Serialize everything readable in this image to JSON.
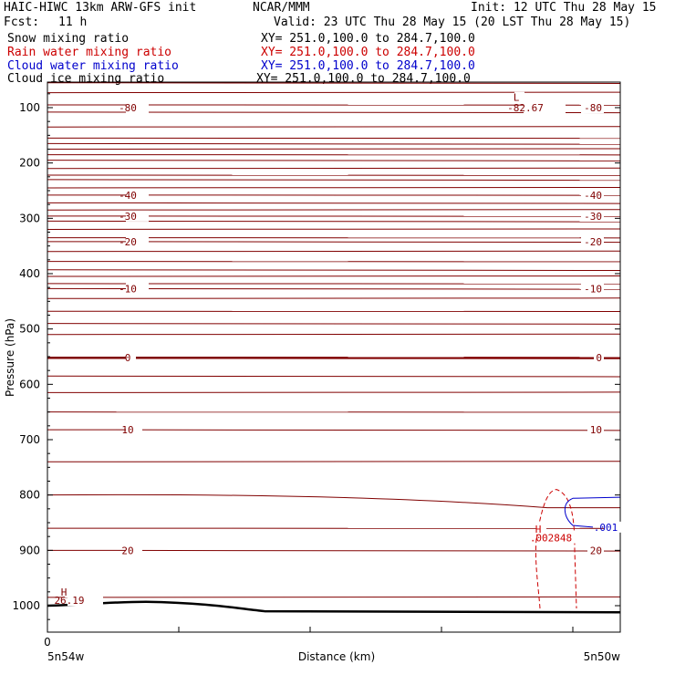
{
  "header": {
    "model": "HAIC-HIWC 13km ARW-GFS init",
    "org": "NCAR/MMM",
    "init": "Init: 12 UTC Thu 28 May 15",
    "fcst_label": "Fcst:",
    "fcst_value": "11 h",
    "valid": "Valid: 23 UTC Thu 28 May 15 (20 LST Thu 28 May 15)"
  },
  "fields": [
    {
      "name": "Snow mixing ratio",
      "xy": "XY= 251.0,100.0 to 284.7,100.0",
      "color": "#000000"
    },
    {
      "name": "Rain water mixing ratio",
      "xy": "XY= 251.0,100.0 to 284.7,100.0",
      "color": "#cc0000"
    },
    {
      "name": "Cloud water mixing ratio",
      "xy": "XY= 251.0,100.0 to 284.7,100.0",
      "color": "#0000cc"
    },
    {
      "name": "Cloud ice mixing ratio",
      "xy": "XY= 251.0,100.0 to 284.7,100.0",
      "color": "#000000"
    }
  ],
  "chart_data": {
    "type": "cross-section contour",
    "ylabel": "Pressure (hPa)",
    "xlabel": "Distance (km)",
    "x_origin_label": "0",
    "x_start_label": "5n54w",
    "x_end_label": "5n50w",
    "ylim": [
      1050,
      50
    ],
    "yticks": [
      100,
      200,
      300,
      400,
      500,
      600,
      700,
      800,
      900,
      1000
    ],
    "isotherm_color": "#800000",
    "isotherm_labels": [
      {
        "value": "-80",
        "p": 100,
        "side": "both"
      },
      {
        "value": "-40",
        "p": 258,
        "side": "both"
      },
      {
        "value": "-30",
        "p": 296,
        "side": "both"
      },
      {
        "value": "-20",
        "p": 342,
        "side": "both"
      },
      {
        "value": "-10",
        "p": 427,
        "side": "both"
      },
      {
        "value": "0",
        "p": 552,
        "side": "both"
      },
      {
        "value": "10",
        "p": 682,
        "side": "both"
      },
      {
        "value": "20",
        "p": 900,
        "side": "both"
      }
    ],
    "extrema": [
      {
        "kind": "L",
        "value": "-82.67",
        "color": "#800000"
      },
      {
        "kind": "H",
        "value": "26.19",
        "color": "#800000"
      },
      {
        "kind": "H",
        "value": ".002848",
        "color": "#cc0000"
      }
    ],
    "cloud_water_label": ".001"
  }
}
